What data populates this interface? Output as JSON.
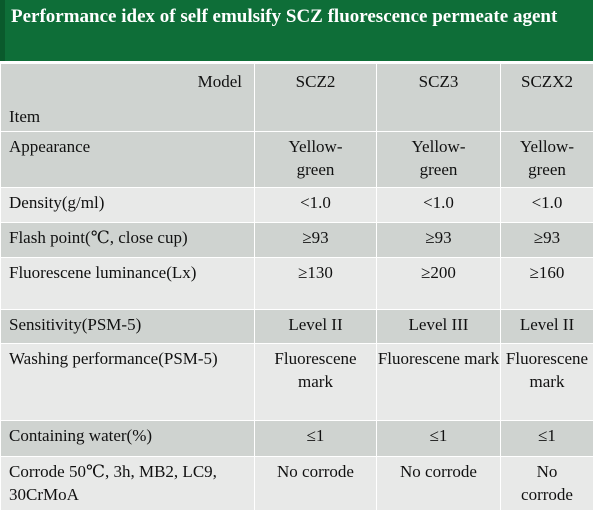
{
  "title": "Performance idex of self emulsify SCZ fluorescence permeate agent",
  "header": {
    "model_label": "Model",
    "item_label": "Item",
    "columns": [
      "SCZ2",
      "SCZ3",
      "SCZX2"
    ]
  },
  "rows": [
    {
      "label": "Appearance",
      "values": [
        "Yellow-green",
        "Yellow-green",
        "Yellow-green"
      ]
    },
    {
      "label": "Density(g/ml)",
      "values": [
        "<1.0",
        "<1.0",
        "<1.0"
      ]
    },
    {
      "label": "Flash point(℃, close cup)",
      "values": [
        "≥93",
        "≥93",
        "≥93"
      ]
    },
    {
      "label": "Fluorescene  luminance(Lx)",
      "values": [
        "≥130",
        "≥200",
        "≥160"
      ]
    },
    {
      "label": "Sensitivity(PSM-5)",
      "values": [
        "Level II",
        "Level III",
        "Level II"
      ]
    },
    {
      "label": "Washing performance(PSM-5)",
      "values": [
        "Fluorescene mark",
        "Fluorescene mark",
        "Fluorescene mark"
      ]
    },
    {
      "label": "Containing water(%)",
      "values": [
        "≤1",
        "≤1",
        "≤1"
      ]
    },
    {
      "label": "Corrode 50℃, 3h, MB2, LC9, 30CrMoA",
      "values": [
        "No corrode",
        "No corrode",
        "No corrode"
      ]
    }
  ]
}
